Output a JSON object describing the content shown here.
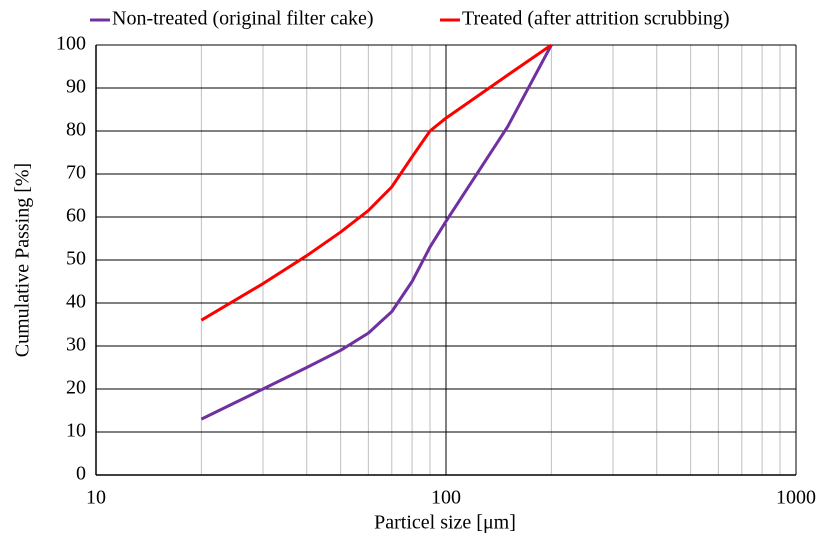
{
  "chart_data": {
    "type": "line",
    "x_label": "Particel size [μm]",
    "y_label": "Cumulative  Passing [%]",
    "log_x": true,
    "xlim": [
      10,
      1000
    ],
    "xticks": [
      10,
      100,
      1000
    ],
    "minor_xticks": [
      20,
      30,
      40,
      50,
      60,
      70,
      80,
      90,
      200,
      300,
      400,
      500,
      600,
      700,
      800,
      900
    ],
    "ylim": [
      0,
      100
    ],
    "yticks": [
      0,
      10,
      20,
      30,
      40,
      50,
      60,
      70,
      80,
      90,
      100
    ],
    "grid": true,
    "legend": "top",
    "series": [
      {
        "name": "Non-treated (original filter cake)",
        "color": "#7030a0",
        "x": [
          20,
          30,
          40,
          50,
          60,
          70,
          80,
          90,
          100,
          150,
          200
        ],
        "values": [
          13,
          20,
          25,
          29,
          33,
          38,
          45,
          53,
          59,
          81,
          100
        ]
      },
      {
        "name": "Treated (after attrition scrubbing)",
        "color": "#ff0000",
        "x": [
          20,
          30,
          40,
          50,
          60,
          70,
          80,
          90,
          100,
          150,
          200
        ],
        "values": [
          36,
          44.5,
          51,
          56.5,
          61.5,
          67,
          74,
          80,
          83,
          93,
          100
        ]
      }
    ]
  }
}
